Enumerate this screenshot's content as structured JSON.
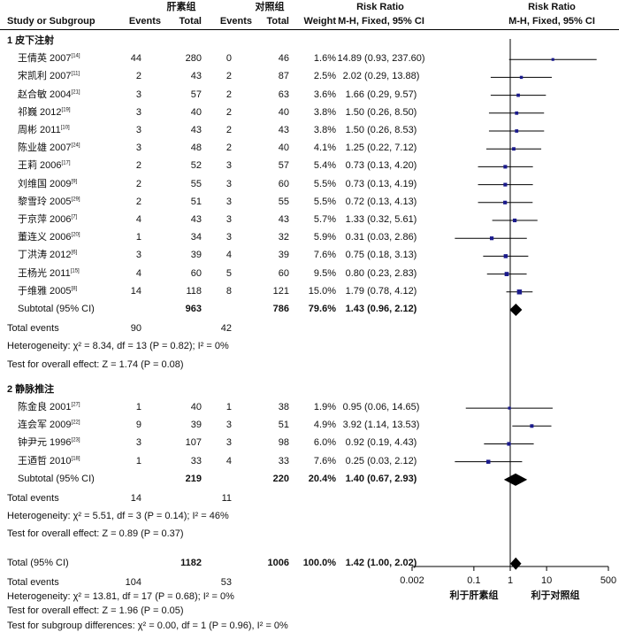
{
  "header": {
    "group1": "肝素组",
    "group2": "对照组",
    "rr_title": "Risk Ratio",
    "rr_title2": "Risk Ratio",
    "study": "Study or Subgroup",
    "events1": "Events",
    "total1": "Total",
    "events2": "Events",
    "total2": "Total",
    "weight": "Weight",
    "method": "M-H, Fixed, 95% CI",
    "method2": "M-H, Fixed, 95% CI"
  },
  "subgroups": [
    {
      "title": "1 皮下注射",
      "studies": [
        {
          "name": "王倩英 2007",
          "ref": "[14]",
          "e1": "44",
          "n1": "280",
          "e2": "0",
          "n2": "46",
          "weight": "1.6%",
          "ci": "14.89 (0.93, 237.60)"
        },
        {
          "name": "宋凯利 2007",
          "ref": "[11]",
          "e1": "2",
          "n1": "43",
          "e2": "2",
          "n2": "87",
          "weight": "2.5%",
          "ci": "2.02 (0.29, 13.88)"
        },
        {
          "name": "赵合敏 2004",
          "ref": "[21]",
          "e1": "3",
          "n1": "57",
          "e2": "2",
          "n2": "63",
          "weight": "3.6%",
          "ci": "1.66 (0.29, 9.57)"
        },
        {
          "name": "祁巍 2012",
          "ref": "[19]",
          "e1": "3",
          "n1": "40",
          "e2": "2",
          "n2": "40",
          "weight": "3.8%",
          "ci": "1.50 (0.26, 8.50)"
        },
        {
          "name": "周彬 2011",
          "ref": "[10]",
          "e1": "3",
          "n1": "43",
          "e2": "2",
          "n2": "43",
          "weight": "3.8%",
          "ci": "1.50 (0.26, 8.53)"
        },
        {
          "name": "陈业雄 2007",
          "ref": "[24]",
          "e1": "3",
          "n1": "48",
          "e2": "2",
          "n2": "40",
          "weight": "4.1%",
          "ci": "1.25 (0.22, 7.12)"
        },
        {
          "name": "王莉 2006",
          "ref": "[17]",
          "e1": "2",
          "n1": "52",
          "e2": "3",
          "n2": "57",
          "weight": "5.4%",
          "ci": "0.73 (0.13, 4.20)"
        },
        {
          "name": "刘维国 2009",
          "ref": "[9]",
          "e1": "2",
          "n1": "55",
          "e2": "3",
          "n2": "60",
          "weight": "5.5%",
          "ci": "0.73 (0.13, 4.19)"
        },
        {
          "name": "黎雪玲 2005",
          "ref": "[29]",
          "e1": "2",
          "n1": "51",
          "e2": "3",
          "n2": "55",
          "weight": "5.5%",
          "ci": "0.72 (0.13, 4.13)"
        },
        {
          "name": "于京萍 2006",
          "ref": "[7]",
          "e1": "4",
          "n1": "43",
          "e2": "3",
          "n2": "43",
          "weight": "5.7%",
          "ci": "1.33 (0.32, 5.61)"
        },
        {
          "name": "董连义 2006",
          "ref": "[20]",
          "e1": "1",
          "n1": "34",
          "e2": "3",
          "n2": "32",
          "weight": "5.9%",
          "ci": "0.31 (0.03, 2.86)"
        },
        {
          "name": "丁洪涛 2012",
          "ref": "[6]",
          "e1": "3",
          "n1": "39",
          "e2": "4",
          "n2": "39",
          "weight": "7.6%",
          "ci": "0.75 (0.18, 3.13)"
        },
        {
          "name": "王杨光 2011",
          "ref": "[15]",
          "e1": "4",
          "n1": "60",
          "e2": "5",
          "n2": "60",
          "weight": "9.5%",
          "ci": "0.80 (0.23, 2.83)"
        },
        {
          "name": "于维雅 2005",
          "ref": "[8]",
          "e1": "14",
          "n1": "118",
          "e2": "8",
          "n2": "121",
          "weight": "15.0%",
          "ci": "1.79 (0.78, 4.12)"
        }
      ],
      "subtotal": {
        "label": "Subtotal (95% CI)",
        "n1": "963",
        "n2": "786",
        "weight": "79.6%",
        "ci": "1.43 (0.96, 2.12)"
      },
      "total_events": {
        "label": "Total events",
        "e1": "90",
        "e2": "42"
      },
      "heterogeneity": "Heterogeneity: χ² = 8.34, df = 13 (P = 0.82); I² = 0%",
      "overall": "Test for overall effect: Z = 1.74 (P = 0.08)"
    },
    {
      "title": "2 静脉推注",
      "studies": [
        {
          "name": "陈金良 2001",
          "ref": "[27]",
          "e1": "1",
          "n1": "40",
          "e2": "1",
          "n2": "38",
          "weight": "1.9%",
          "ci": "0.95 (0.06, 14.65)"
        },
        {
          "name": "连会军 2009",
          "ref": "[22]",
          "e1": "9",
          "n1": "39",
          "e2": "3",
          "n2": "51",
          "weight": "4.9%",
          "ci": "3.92 (1.14, 13.53)"
        },
        {
          "name": "钟尹元 1996",
          "ref": "[23]",
          "e1": "3",
          "n1": "107",
          "e2": "3",
          "n2": "98",
          "weight": "6.0%",
          "ci": "0.92 (0.19, 4.43)"
        },
        {
          "name": "王迺哲 2010",
          "ref": "[18]",
          "e1": "1",
          "n1": "33",
          "e2": "4",
          "n2": "33",
          "weight": "7.6%",
          "ci": "0.25 (0.03, 2.12)"
        }
      ],
      "subtotal": {
        "label": "Subtotal (95% CI)",
        "n1": "219",
        "n2": "220",
        "weight": "20.4%",
        "ci": "1.40 (0.67, 2.93)"
      },
      "total_events": {
        "label": "Total events",
        "e1": "14",
        "e2": "11"
      },
      "heterogeneity": "Heterogeneity: χ² = 5.51, df = 3 (P = 0.14); I² = 46%",
      "overall": "Test for overall effect: Z = 0.89 (P = 0.37)"
    }
  ],
  "total": {
    "label": "Total (95% CI)",
    "n1": "1182",
    "n2": "1006",
    "weight": "100.0%",
    "ci": "1.42 (1.00, 2.02)"
  },
  "total_events": {
    "label": "Total events",
    "e1": "104",
    "e2": "53"
  },
  "heterogeneity": "Heterogeneity: χ² = 13.81, df = 17 (P = 0.68); I² = 0%",
  "overall": "Test for overall effect: Z = 1.96 (P = 0.05)",
  "subgroup_diff": "Test for subgroup differences: χ² = 0.00, df = 1 (P = 0.96), I² = 0%",
  "axis": {
    "ticks": [
      "0.002",
      "0.1",
      "1",
      "10",
      "500"
    ],
    "favours_left": "利于肝素组",
    "favours_right": "利于对照组"
  },
  "colors": {
    "marker": "#1a1a8c",
    "diamond": "#000000"
  },
  "chart_data": {
    "type": "forest",
    "scale": "log",
    "xlim": [
      0.002,
      500
    ],
    "x_ticks": [
      0.002,
      0.1,
      1,
      10,
      500
    ],
    "reference_line": 1,
    "studies": [
      {
        "group": 1,
        "rr": 14.89,
        "lo": 0.93,
        "hi": 237.6,
        "weight": 1.6
      },
      {
        "group": 1,
        "rr": 2.02,
        "lo": 0.29,
        "hi": 13.88,
        "weight": 2.5
      },
      {
        "group": 1,
        "rr": 1.66,
        "lo": 0.29,
        "hi": 9.57,
        "weight": 3.6
      },
      {
        "group": 1,
        "rr": 1.5,
        "lo": 0.26,
        "hi": 8.5,
        "weight": 3.8
      },
      {
        "group": 1,
        "rr": 1.5,
        "lo": 0.26,
        "hi": 8.53,
        "weight": 3.8
      },
      {
        "group": 1,
        "rr": 1.25,
        "lo": 0.22,
        "hi": 7.12,
        "weight": 4.1
      },
      {
        "group": 1,
        "rr": 0.73,
        "lo": 0.13,
        "hi": 4.2,
        "weight": 5.4
      },
      {
        "group": 1,
        "rr": 0.73,
        "lo": 0.13,
        "hi": 4.19,
        "weight": 5.5
      },
      {
        "group": 1,
        "rr": 0.72,
        "lo": 0.13,
        "hi": 4.13,
        "weight": 5.5
      },
      {
        "group": 1,
        "rr": 1.33,
        "lo": 0.32,
        "hi": 5.61,
        "weight": 5.7
      },
      {
        "group": 1,
        "rr": 0.31,
        "lo": 0.03,
        "hi": 2.86,
        "weight": 5.9
      },
      {
        "group": 1,
        "rr": 0.75,
        "lo": 0.18,
        "hi": 3.13,
        "weight": 7.6
      },
      {
        "group": 1,
        "rr": 0.8,
        "lo": 0.23,
        "hi": 2.83,
        "weight": 9.5
      },
      {
        "group": 1,
        "rr": 1.79,
        "lo": 0.78,
        "hi": 4.12,
        "weight": 15.0
      },
      {
        "group": 2,
        "rr": 0.95,
        "lo": 0.06,
        "hi": 14.65,
        "weight": 1.9
      },
      {
        "group": 2,
        "rr": 3.92,
        "lo": 1.14,
        "hi": 13.53,
        "weight": 4.9
      },
      {
        "group": 2,
        "rr": 0.92,
        "lo": 0.19,
        "hi": 4.43,
        "weight": 6.0
      },
      {
        "group": 2,
        "rr": 0.25,
        "lo": 0.03,
        "hi": 2.12,
        "weight": 7.6
      }
    ],
    "diamonds": [
      {
        "label": "Subtotal 1",
        "rr": 1.43,
        "lo": 0.96,
        "hi": 2.12
      },
      {
        "label": "Subtotal 2",
        "rr": 1.4,
        "lo": 0.67,
        "hi": 2.93
      },
      {
        "label": "Total",
        "rr": 1.42,
        "lo": 1.0,
        "hi": 2.02
      }
    ]
  }
}
